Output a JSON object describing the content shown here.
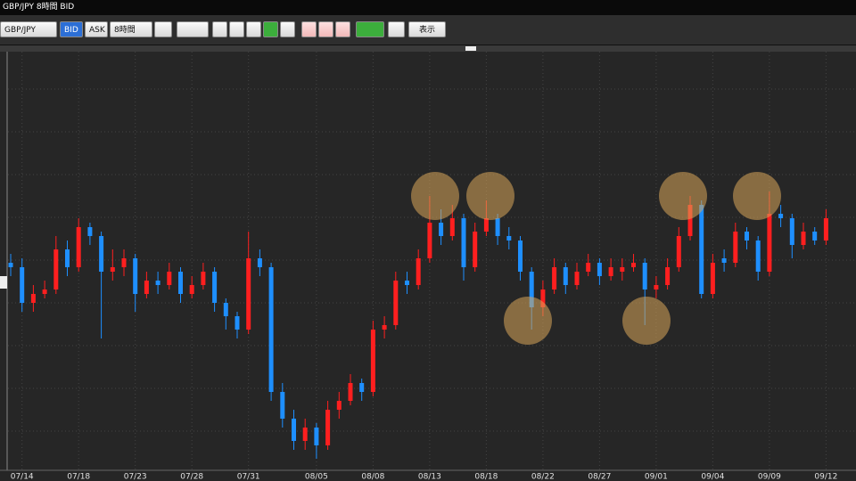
{
  "window_title": "GBP/JPY 8時間 BID",
  "toolbar": {
    "symbol": "GBP/JPY",
    "bid": "BID",
    "ask": "ASK",
    "timeframe": "8時間",
    "view": "表示"
  },
  "chart_data": {
    "type": "candlestick",
    "up_color": "#ff1f1f",
    "down_color": "#1e8fff",
    "ylim": [
      128.7,
      133.4
    ],
    "categories": [
      null,
      "07/14",
      null,
      null,
      null,
      null,
      "07/18",
      null,
      null,
      null,
      null,
      "07/23",
      null,
      null,
      null,
      null,
      "07/28",
      null,
      null,
      null,
      null,
      "07/31",
      null,
      null,
      null,
      null,
      null,
      "08/05",
      null,
      null,
      null,
      null,
      "08/08",
      null,
      null,
      null,
      null,
      "08/13",
      null,
      null,
      null,
      null,
      "08/18",
      null,
      null,
      null,
      null,
      "08/22",
      null,
      null,
      null,
      null,
      "08/27",
      null,
      null,
      null,
      null,
      "09/01",
      null,
      null,
      null,
      null,
      "09/04",
      null,
      null,
      null,
      null,
      "09/09",
      null,
      null,
      null,
      null,
      "09/12"
    ],
    "open": [
      131.05,
      131.0,
      130.6,
      130.7,
      130.75,
      131.2,
      131.0,
      131.45,
      131.35,
      130.95,
      131.0,
      131.1,
      130.7,
      130.85,
      130.8,
      130.95,
      130.7,
      130.8,
      130.95,
      130.6,
      130.45,
      130.3,
      131.1,
      131.0,
      129.6,
      129.3,
      129.05,
      129.2,
      129.0,
      129.4,
      129.5,
      129.7,
      129.6,
      130.3,
      130.35,
      130.85,
      130.8,
      131.1,
      131.5,
      131.35,
      131.55,
      131.0,
      131.4,
      131.55,
      131.35,
      131.3,
      130.95,
      130.55,
      130.75,
      131.0,
      130.8,
      130.95,
      131.05,
      130.9,
      130.95,
      131.0,
      131.05,
      130.75,
      130.8,
      131.0,
      131.35,
      131.7,
      130.7,
      131.1,
      131.05,
      131.4,
      131.3,
      130.95,
      131.6,
      131.55,
      131.25,
      131.4,
      131.3
    ],
    "high": [
      131.15,
      131.1,
      130.8,
      130.85,
      131.35,
      131.3,
      131.55,
      131.5,
      131.4,
      131.2,
      131.2,
      131.15,
      130.95,
      130.95,
      131.05,
      131.0,
      130.9,
      131.05,
      131.0,
      130.65,
      130.5,
      131.4,
      131.2,
      131.05,
      129.7,
      129.4,
      129.3,
      129.25,
      129.5,
      129.6,
      129.8,
      129.75,
      130.4,
      130.45,
      130.95,
      130.95,
      131.2,
      131.8,
      131.65,
      131.7,
      131.6,
      131.5,
      131.75,
      131.6,
      131.45,
      131.35,
      131.0,
      130.85,
      131.1,
      131.05,
      131.05,
      131.15,
      131.1,
      131.1,
      131.1,
      131.15,
      131.1,
      130.9,
      131.1,
      131.45,
      131.8,
      131.75,
      131.15,
      131.2,
      131.5,
      131.45,
      131.35,
      131.85,
      131.7,
      131.6,
      131.5,
      131.45,
      131.65
    ],
    "low": [
      130.9,
      130.5,
      130.5,
      130.65,
      130.7,
      130.9,
      130.95,
      131.25,
      130.2,
      130.85,
      130.9,
      130.5,
      130.65,
      130.7,
      130.75,
      130.6,
      130.65,
      130.75,
      130.5,
      130.3,
      130.2,
      130.25,
      130.9,
      129.5,
      129.2,
      128.95,
      128.95,
      128.85,
      128.95,
      129.3,
      129.45,
      129.5,
      129.55,
      130.2,
      130.3,
      130.7,
      130.75,
      131.05,
      131.25,
      131.3,
      130.85,
      130.95,
      131.35,
      131.25,
      131.2,
      130.85,
      130.3,
      130.45,
      130.7,
      130.7,
      130.75,
      130.9,
      130.8,
      130.85,
      130.85,
      130.95,
      130.35,
      130.65,
      130.75,
      130.95,
      131.3,
      130.65,
      130.65,
      130.95,
      131.0,
      131.2,
      130.85,
      130.9,
      131.45,
      131.1,
      131.2,
      131.25,
      131.25
    ],
    "close": [
      131.0,
      130.6,
      130.7,
      130.75,
      131.2,
      131.0,
      131.45,
      131.35,
      130.95,
      131.0,
      131.1,
      130.7,
      130.85,
      130.8,
      130.95,
      130.7,
      130.8,
      130.95,
      130.6,
      130.45,
      130.3,
      131.1,
      131.0,
      129.6,
      129.3,
      129.05,
      129.2,
      129.0,
      129.4,
      129.5,
      129.7,
      129.6,
      130.3,
      130.35,
      130.85,
      130.8,
      131.1,
      131.5,
      131.35,
      131.55,
      131.0,
      131.4,
      131.55,
      131.35,
      131.3,
      130.95,
      130.55,
      130.75,
      131.0,
      130.8,
      130.95,
      131.05,
      130.9,
      131.0,
      131.0,
      131.05,
      130.75,
      130.8,
      131.0,
      131.35,
      131.7,
      130.7,
      131.05,
      131.05,
      131.4,
      131.3,
      130.95,
      131.6,
      131.55,
      131.25,
      131.4,
      131.3,
      131.55
    ]
  }
}
